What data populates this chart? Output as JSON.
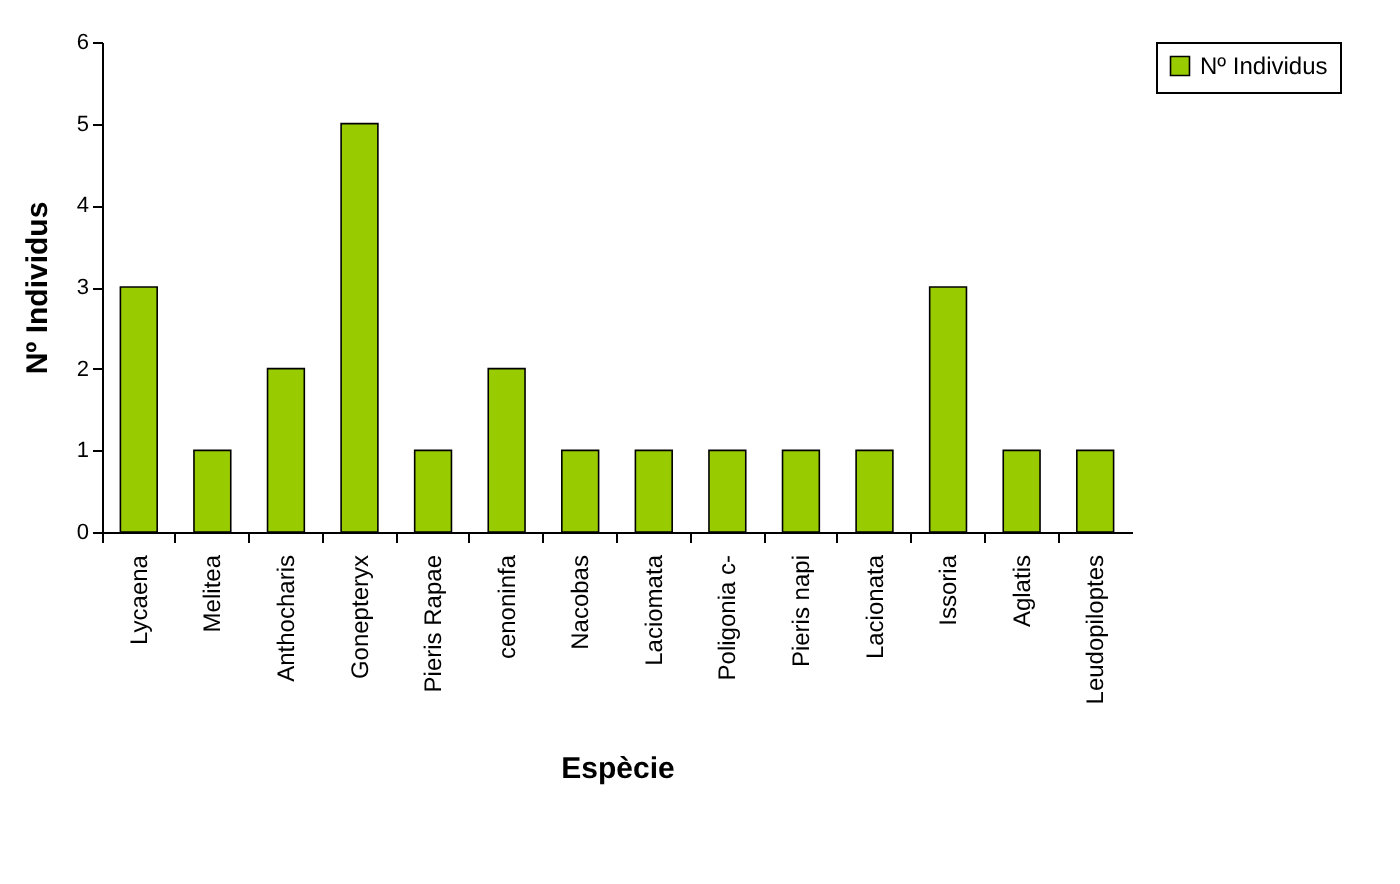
{
  "chart_data": {
    "type": "bar",
    "xlabel": "Espècie",
    "ylabel": "Nº Individus",
    "categories": [
      "Lycaena",
      "Melitea",
      "Anthocharis",
      "Gonepteryx",
      "Pieris Rapae",
      "cenoninfa",
      "Nacobas",
      "Laciomata",
      "Poligonia c-",
      "Pieris napi",
      "Lacionata",
      "Issoria",
      "Aglatis",
      "Leudopiloptes"
    ],
    "series": [
      {
        "name": "Nº Individus",
        "color": "#99cc00",
        "values": [
          3,
          1,
          2,
          5,
          1,
          2,
          1,
          1,
          1,
          1,
          1,
          3,
          1,
          1
        ]
      }
    ],
    "ylim": [
      0,
      6
    ],
    "yticks": [
      0,
      1,
      2,
      3,
      4,
      5,
      6
    ],
    "grid": false,
    "legend": "right"
  }
}
